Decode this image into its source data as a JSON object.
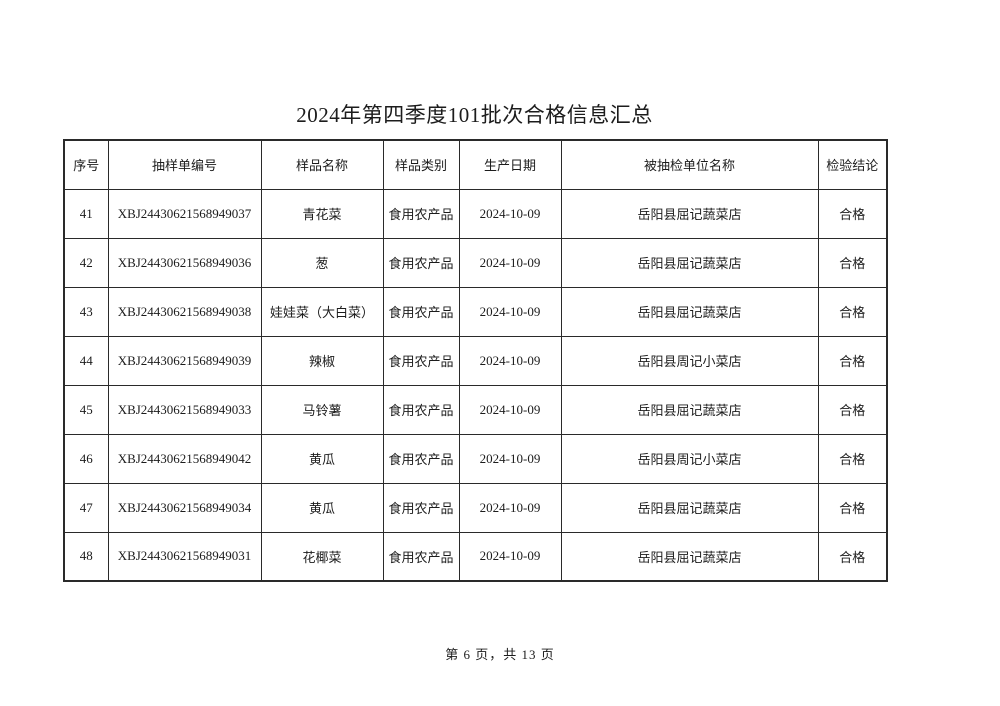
{
  "title": "2024年第四季度101批次合格信息汇总",
  "table": {
    "columns": [
      {
        "key": "index",
        "label": "序号"
      },
      {
        "key": "sample_no",
        "label": "抽样单编号"
      },
      {
        "key": "sample_name",
        "label": "样品名称"
      },
      {
        "key": "category",
        "label": "样品类别"
      },
      {
        "key": "production_date",
        "label": "生产日期"
      },
      {
        "key": "unit_name",
        "label": "被抽检单位名称"
      },
      {
        "key": "conclusion",
        "label": "检验结论"
      }
    ],
    "rows": [
      [
        "41",
        "XBJ24430621568949037",
        "青花菜",
        "食用农产品",
        "2024-10-09",
        "岳阳县屈记蔬菜店",
        "合格"
      ],
      [
        "42",
        "XBJ24430621568949036",
        "葱",
        "食用农产品",
        "2024-10-09",
        "岳阳县屈记蔬菜店",
        "合格"
      ],
      [
        "43",
        "XBJ24430621568949038",
        "娃娃菜（大白菜）",
        "食用农产品",
        "2024-10-09",
        "岳阳县屈记蔬菜店",
        "合格"
      ],
      [
        "44",
        "XBJ24430621568949039",
        "辣椒",
        "食用农产品",
        "2024-10-09",
        "岳阳县周记小菜店",
        "合格"
      ],
      [
        "45",
        "XBJ24430621568949033",
        "马铃薯",
        "食用农产品",
        "2024-10-09",
        "岳阳县屈记蔬菜店",
        "合格"
      ],
      [
        "46",
        "XBJ24430621568949042",
        "黄瓜",
        "食用农产品",
        "2024-10-09",
        "岳阳县周记小菜店",
        "合格"
      ],
      [
        "47",
        "XBJ24430621568949034",
        "黄瓜",
        "食用农产品",
        "2024-10-09",
        "岳阳县屈记蔬菜店",
        "合格"
      ],
      [
        "48",
        "XBJ24430621568949031",
        "花椰菜",
        "食用农产品",
        "2024-10-09",
        "岳阳县屈记蔬菜店",
        "合格"
      ]
    ]
  },
  "footer": {
    "page_indicator": "第 6 页，共 13 页"
  },
  "colors": {
    "page_background": "#ffffff",
    "text": "#1c1c1c",
    "table_border": "#2a2a2a"
  }
}
